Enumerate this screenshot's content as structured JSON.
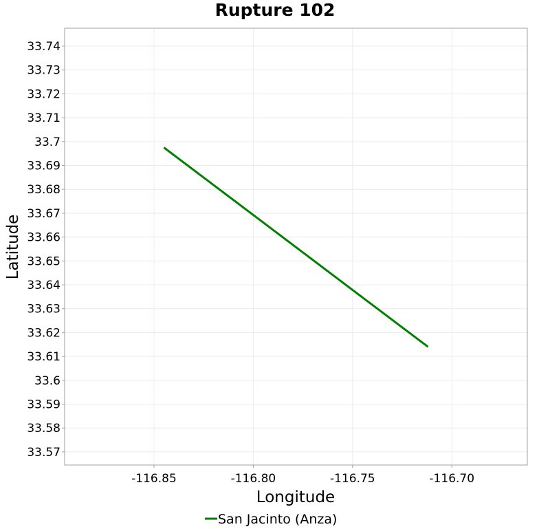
{
  "chart_data": {
    "type": "line",
    "title": "Rupture 102",
    "xlabel": "Longitude",
    "ylabel": "Latitude",
    "xlim": [
      -116.895,
      -116.662
    ],
    "ylim": [
      33.5645,
      33.7475
    ],
    "xticks": [
      -116.85,
      -116.8,
      -116.75,
      -116.7
    ],
    "xtick_labels": [
      "-116.85",
      "-116.80",
      "-116.75",
      "-116.70"
    ],
    "yticks": [
      33.57,
      33.58,
      33.59,
      33.6,
      33.61,
      33.62,
      33.63,
      33.64,
      33.65,
      33.66,
      33.67,
      33.68,
      33.69,
      33.7,
      33.71,
      33.72,
      33.73,
      33.74
    ],
    "ytick_labels": [
      "33.57",
      "33.58",
      "33.59",
      "33.6",
      "33.61",
      "33.62",
      "33.63",
      "33.64",
      "33.65",
      "33.66",
      "33.67",
      "33.68",
      "33.69",
      "33.7",
      "33.71",
      "33.72",
      "33.73",
      "33.74"
    ],
    "grid": true,
    "legend_position": "bottom-center",
    "series": [
      {
        "name": "San Jacinto (Anza)",
        "color": "#008000",
        "x": [
          -116.845,
          -116.712
        ],
        "y": [
          33.6975,
          33.614
        ]
      }
    ]
  }
}
